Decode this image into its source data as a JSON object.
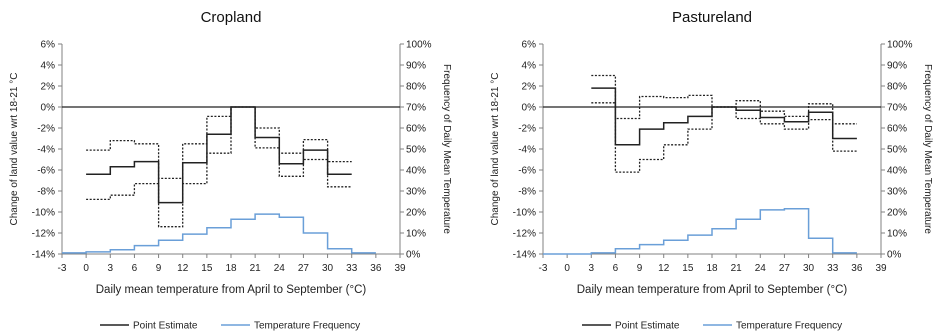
{
  "chart_data": [
    {
      "type": "line",
      "title": "Cropland",
      "xlabel": "Daily mean temperature from April to September (°C)",
      "ylabel": "Change of land value wrt 18-21 °C",
      "y2label": "Frequency of Daily Mean Temperature",
      "xlim": [
        -3,
        39
      ],
      "ylim": [
        -14,
        6
      ],
      "y2lim": [
        0,
        100
      ],
      "x_ticks": [
        "-3",
        "0",
        "3",
        "6",
        "9",
        "12",
        "15",
        "18",
        "21",
        "24",
        "27",
        "30",
        "33",
        "36",
        "39"
      ],
      "y_ticks": [
        "6%",
        "4%",
        "2%",
        "0%",
        "-2%",
        "-4%",
        "-6%",
        "-8%",
        "-10%",
        "-12%",
        "-14%"
      ],
      "y2_ticks": [
        "100%",
        "90%",
        "80%",
        "70%",
        "60%",
        "50%",
        "40%",
        "30%",
        "20%",
        "10%",
        "0%"
      ],
      "bin_edges": [
        0,
        3,
        6,
        9,
        12,
        15,
        18,
        21,
        24,
        27,
        30,
        33
      ],
      "series": [
        {
          "name": "Point Estimate",
          "style": "solid",
          "color": "#222222",
          "values": [
            -6.4,
            -5.7,
            -5.2,
            -9.1,
            -5.3,
            -2.6,
            0,
            -2.9,
            -5.4,
            -4.1,
            -6.4
          ]
        },
        {
          "name": "",
          "style": "dotted",
          "color": "#222222",
          "values": [
            -4.1,
            -3.2,
            -3.5,
            -6.8,
            -3.5,
            -0.9,
            0,
            -2.0,
            -4.4,
            -3.1,
            -5.2
          ]
        },
        {
          "name": "",
          "style": "dotted",
          "color": "#222222",
          "values": [
            -8.8,
            -8.4,
            -7.3,
            -11.4,
            -7.3,
            -4.4,
            0,
            -3.9,
            -6.6,
            -5.0,
            -7.6
          ]
        }
      ],
      "frequency_series": {
        "name": "Temperature Frequency",
        "color": "#6a9fd8",
        "edges": [
          -3,
          0,
          3,
          6,
          9,
          12,
          15,
          18,
          21,
          24,
          27,
          30,
          33,
          36
        ],
        "values": [
          0.5,
          1,
          2,
          4,
          6.5,
          9.5,
          12.5,
          16.5,
          19,
          17.5,
          10,
          2.5,
          0.5
        ]
      }
    },
    {
      "type": "line",
      "title": "Pastureland",
      "xlabel": "Daily mean temperature from April to September (°C)",
      "ylabel": "Change of land value wrt 18-21 °C",
      "y2label": "Frequency of Daily Mean Temperature",
      "xlim": [
        -3,
        39
      ],
      "ylim": [
        -14,
        6
      ],
      "y2lim": [
        0,
        100
      ],
      "x_ticks": [
        "-3",
        "0",
        "3",
        "6",
        "9",
        "12",
        "15",
        "18",
        "21",
        "24",
        "27",
        "30",
        "33",
        "36",
        "39"
      ],
      "y_ticks": [
        "6%",
        "4%",
        "2%",
        "0%",
        "-2%",
        "-4%",
        "-6%",
        "-8%",
        "-10%",
        "-12%",
        "-14%"
      ],
      "y2_ticks": [
        "100%",
        "90%",
        "80%",
        "70%",
        "60%",
        "50%",
        "40%",
        "30%",
        "20%",
        "10%",
        "0%"
      ],
      "bin_edges": [
        3,
        6,
        9,
        12,
        15,
        18,
        21,
        24,
        27,
        30,
        33,
        36
      ],
      "series": [
        {
          "name": "Point Estimate",
          "style": "solid",
          "color": "#222222",
          "values": [
            1.8,
            -3.6,
            -2.1,
            -1.5,
            -0.9,
            0,
            -0.3,
            -1.0,
            -1.4,
            -0.5,
            -3.0
          ]
        },
        {
          "name": "",
          "style": "dotted",
          "color": "#222222",
          "values": [
            3.0,
            -1.1,
            1.0,
            0.9,
            1.1,
            0,
            0.6,
            -0.4,
            -0.9,
            0.3,
            -1.6
          ]
        },
        {
          "name": "",
          "style": "dotted",
          "color": "#222222",
          "values": [
            0.4,
            -6.2,
            -5.0,
            -3.6,
            -2.1,
            0,
            -1.1,
            -1.6,
            -2.1,
            -1.2,
            -4.2
          ]
        }
      ],
      "frequency_series": {
        "name": "Temperature Frequency",
        "color": "#6a9fd8",
        "edges": [
          -3,
          0,
          3,
          6,
          9,
          12,
          15,
          18,
          21,
          24,
          27,
          30,
          33,
          36
        ],
        "values": [
          0,
          0,
          0.5,
          2.5,
          4.5,
          6.5,
          9,
          12,
          16.5,
          21,
          21.5,
          7.5,
          0.5
        ]
      }
    }
  ]
}
